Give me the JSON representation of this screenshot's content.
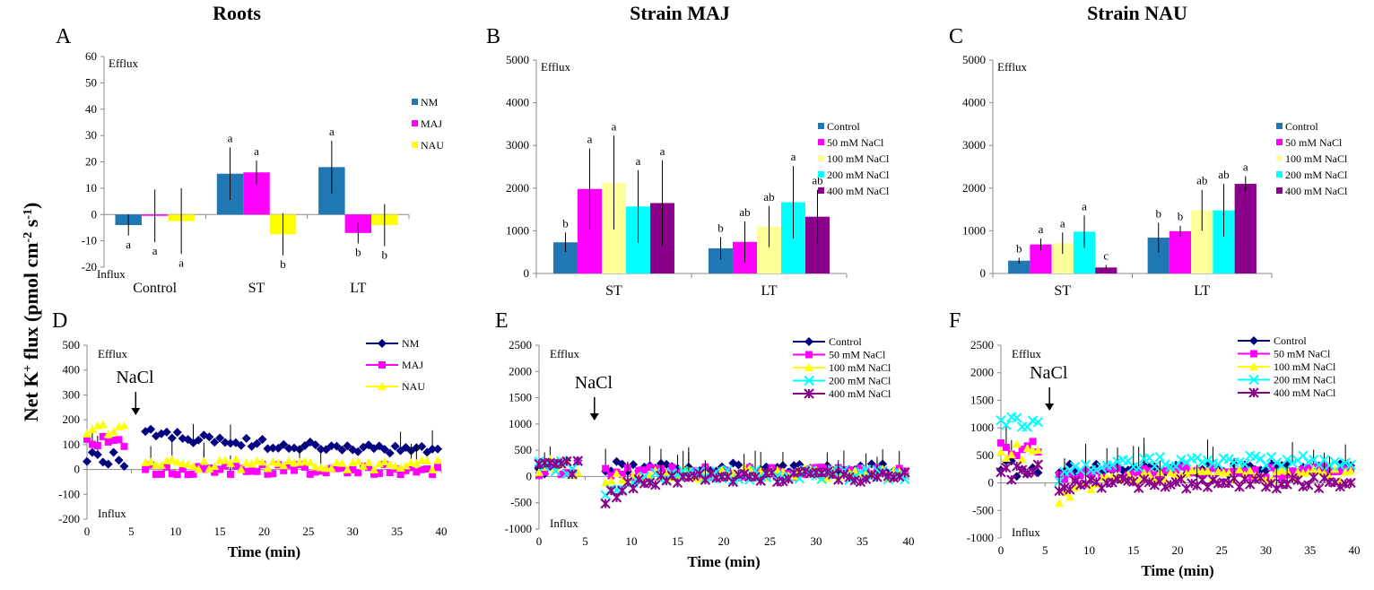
{
  "figure": {
    "y_axis_title": "Net K+ flux (pmol cm-2 s-1)",
    "y_axis_title_main": "Net K",
    "y_axis_title_sup1": "+",
    "y_axis_title_mid": " flux (pmol cm",
    "y_axis_title_sup2": "-2",
    "y_axis_title_s": " s",
    "y_axis_title_sup3": "-1",
    "y_axis_title_end": ")",
    "column_titles": [
      "Roots",
      "Strain MAJ",
      "Strain NAU"
    ],
    "panel_labels": [
      "A",
      "B",
      "C",
      "D",
      "E",
      "F"
    ],
    "annotation_text": "NaCl",
    "efflux_label": "Efflux",
    "influx_label": "Influx"
  },
  "colors": {
    "NM": "#1f77b4",
    "MAJ": "#ff00ff",
    "NAU": "#ffff00",
    "Control": "#1f77b4",
    "50": "#ff00ff",
    "100": "#ffff99",
    "200": "#00ffff",
    "400": "#8b008b",
    "navy": "#000080",
    "magenta": "#ff00ff",
    "yellow": "#ffff00",
    "cyan": "#00ffff",
    "purple": "#8b008b"
  },
  "chart_data": [
    {
      "panel": "A",
      "type": "bar",
      "title": "Roots",
      "categories": [
        "Control",
        "ST",
        "LT"
      ],
      "ylim": [
        -20,
        60
      ],
      "yticks": [
        -20,
        -10,
        0,
        10,
        20,
        30,
        40,
        50,
        60
      ],
      "series": [
        {
          "name": "NM",
          "values": [
            -4,
            15.5,
            18
          ],
          "errors": [
            4,
            10,
            10
          ],
          "letters": [
            "a",
            "a",
            "a"
          ]
        },
        {
          "name": "MAJ",
          "values": [
            -0.5,
            16,
            -7
          ],
          "errors": [
            10,
            4.5,
            4
          ],
          "letters": [
            "a",
            "a",
            "b"
          ]
        },
        {
          "name": "NAU",
          "values": [
            -2.5,
            -7.5,
            -4
          ],
          "errors": [
            12.5,
            8,
            8
          ],
          "letters": [
            "a",
            "b",
            "b"
          ]
        }
      ],
      "efflux_label": "Efflux",
      "influx_label": "Influx"
    },
    {
      "panel": "B",
      "type": "bar",
      "title": "Strain MAJ",
      "categories": [
        "ST",
        "LT"
      ],
      "ylim": [
        0,
        5000
      ],
      "yticks": [
        0,
        1000,
        2000,
        3000,
        4000,
        5000
      ],
      "series": [
        {
          "name": "Control",
          "values": [
            730,
            590
          ],
          "errors": [
            230,
            260
          ],
          "letters": [
            "b",
            "b"
          ]
        },
        {
          "name": "50  mM NaCl",
          "values": [
            1980,
            740
          ],
          "errors": [
            950,
            480
          ],
          "letters": [
            "a",
            "ab"
          ]
        },
        {
          "name": "100 mM NaCl",
          "values": [
            2130,
            1100
          ],
          "errors": [
            1100,
            480
          ],
          "letters": [
            "a",
            "ab"
          ]
        },
        {
          "name": "200 mM NaCl",
          "values": [
            1570,
            1670
          ],
          "errors": [
            850,
            850
          ],
          "letters": [
            "a",
            "a"
          ]
        },
        {
          "name": "400 mM NaCl",
          "values": [
            1650,
            1330
          ],
          "errors": [
            1000,
            630
          ],
          "letters": [
            "a",
            "ab"
          ]
        }
      ],
      "efflux_label": "Efflux"
    },
    {
      "panel": "C",
      "type": "bar",
      "title": "Strain NAU",
      "categories": [
        "ST",
        "LT"
      ],
      "ylim": [
        0,
        5000
      ],
      "yticks": [
        0,
        1000,
        2000,
        3000,
        4000,
        5000
      ],
      "series": [
        {
          "name": "Control",
          "values": [
            300,
            840
          ],
          "errors": [
            70,
            350
          ],
          "letters": [
            "b",
            "b"
          ]
        },
        {
          "name": "50  mM NaCl",
          "values": [
            680,
            990
          ],
          "errors": [
            140,
            130
          ],
          "letters": [
            "a",
            "b"
          ]
        },
        {
          "name": "100 mM NaCl",
          "values": [
            710,
            1480
          ],
          "errors": [
            250,
            480
          ],
          "letters": [
            "a",
            "ab"
          ]
        },
        {
          "name": "200 mM NaCl",
          "values": [
            980,
            1480
          ],
          "errors": [
            380,
            620
          ],
          "letters": [
            "a",
            "ab"
          ]
        },
        {
          "name": "400 mM NaCl",
          "values": [
            140,
            2100
          ],
          "errors": [
            60,
            180
          ],
          "letters": [
            "c",
            "a"
          ]
        }
      ],
      "efflux_label": "Efflux"
    },
    {
      "panel": "D",
      "type": "scatter",
      "xlabel": "Time (min)",
      "xlim": [
        0,
        40
      ],
      "xticks": [
        0,
        5,
        10,
        15,
        20,
        25,
        30,
        35,
        40
      ],
      "ylim": [
        -200,
        500
      ],
      "yticks": [
        -200,
        -100,
        0,
        100,
        200,
        300,
        400,
        500
      ],
      "nacl_time": 5.5,
      "series": [
        {
          "name": "NM",
          "marker": "diamond",
          "pre": 40,
          "post_start": 150,
          "post_end": 60,
          "decay": 0.06
        },
        {
          "name": "MAJ",
          "marker": "square",
          "pre": 110,
          "post_start": 0,
          "post_end": 0,
          "decay": 0.1
        },
        {
          "name": "NAU",
          "marker": "triangle",
          "pre": 150,
          "post_start": 20,
          "post_end": 20,
          "decay": 0.1
        }
      ],
      "efflux_label": "Efflux",
      "influx_label": "Influx"
    },
    {
      "panel": "E",
      "type": "scatter",
      "xlabel": "Time (min)",
      "xlim": [
        0,
        40
      ],
      "xticks": [
        0,
        5,
        10,
        15,
        20,
        25,
        30,
        35,
        40
      ],
      "ylim": [
        -1000,
        2500
      ],
      "yticks": [
        -1000,
        -500,
        0,
        500,
        1000,
        1500,
        2000,
        2500
      ],
      "nacl_time": 6,
      "series": [
        {
          "name": "Control",
          "marker": "diamond",
          "pre": 200,
          "post_start": 200,
          "post_end": 150,
          "decay": 0.3
        },
        {
          "name": "50  mM NaCl",
          "marker": "square",
          "pre": 180,
          "post_start": 50,
          "post_end": 80,
          "decay": 0.3
        },
        {
          "name": "100 mM NaCl",
          "marker": "triangle",
          "pre": 160,
          "post_start": -100,
          "post_end": 60,
          "decay": 0.3
        },
        {
          "name": "200 mM NaCl",
          "marker": "x",
          "pre": 150,
          "post_start": -300,
          "post_end": 30,
          "decay": 0.3
        },
        {
          "name": "400 mM NaCl",
          "marker": "star",
          "pre": 140,
          "post_start": -450,
          "post_end": 0,
          "decay": 0.3
        }
      ],
      "efflux_label": "Efflux",
      "influx_label": "Influx"
    },
    {
      "panel": "F",
      "type": "scatter",
      "xlabel": "Time (min)",
      "xlim": [
        0,
        40
      ],
      "xticks": [
        0,
        5,
        10,
        15,
        20,
        25,
        30,
        35,
        40
      ],
      "ylim": [
        -1000,
        2500
      ],
      "yticks": [
        -1000,
        -500,
        0,
        500,
        1000,
        1500,
        2000,
        2500
      ],
      "nacl_time": 5.5,
      "series": [
        {
          "name": "Control",
          "marker": "diamond",
          "pre": 280,
          "post_start": 250,
          "post_end": 250,
          "decay": 0.2
        },
        {
          "name": "50  mM NaCl",
          "marker": "square",
          "pre": 650,
          "post_start": 150,
          "post_end": 200,
          "decay": 0.2
        },
        {
          "name": "100 mM NaCl",
          "marker": "triangle",
          "pre": 550,
          "post_start": -350,
          "post_end": 150,
          "decay": 0.25
        },
        {
          "name": "200 mM NaCl",
          "marker": "x",
          "pre": 1100,
          "post_start": 100,
          "post_end": 400,
          "decay": 0.2
        },
        {
          "name": "400 mM NaCl",
          "marker": "star",
          "pre": 200,
          "post_start": -100,
          "post_end": 0,
          "decay": 0.2
        }
      ],
      "efflux_label": "Efflux",
      "influx_label": "Influx"
    }
  ]
}
